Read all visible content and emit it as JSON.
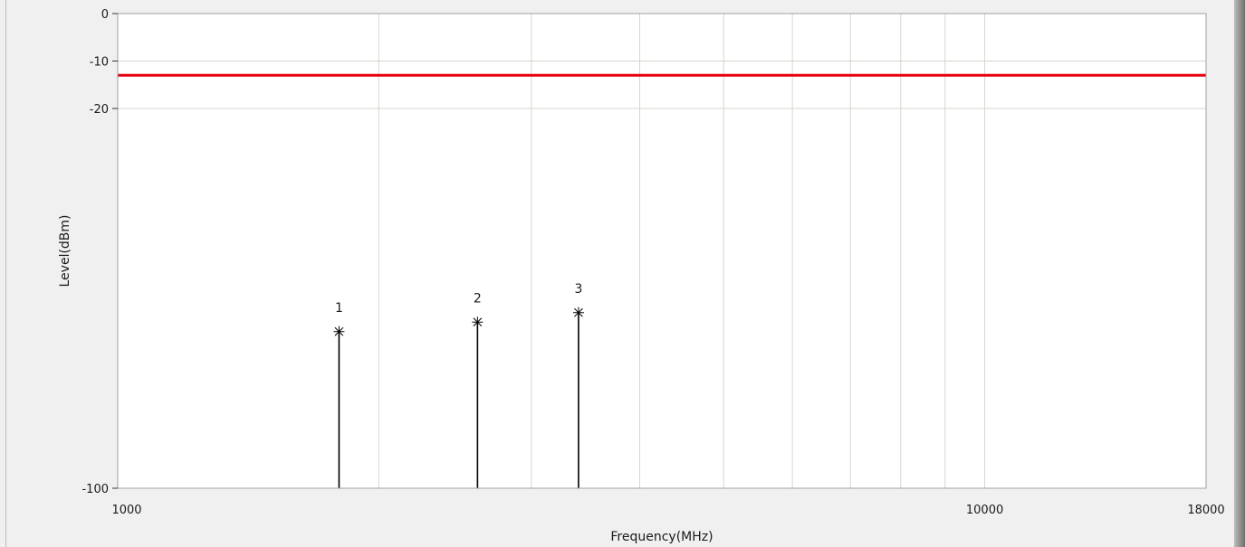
{
  "chart_data": {
    "type": "scatter",
    "title": "",
    "xlabel": "Frequency(MHz)",
    "ylabel": "Level(dBm)",
    "xscale": "log",
    "xlim": [
      1000,
      18000
    ],
    "ylim": [
      -100,
      0
    ],
    "x_tick_labels": [
      {
        "value": 1000,
        "label": "1000"
      },
      {
        "value": 10000,
        "label": "10000"
      },
      {
        "value": 18000,
        "label": "18000"
      }
    ],
    "y_tick_labels": [
      {
        "value": 0,
        "label": "0"
      },
      {
        "value": -10,
        "label": "-10"
      },
      {
        "value": -20,
        "label": "-20"
      },
      {
        "value": -100,
        "label": "-100"
      }
    ],
    "x_gridlines": [
      2000,
      3000,
      4000,
      5000,
      6000,
      7000,
      8000,
      9000,
      10000
    ],
    "y_gridlines": [
      -10,
      -20
    ],
    "grid": true,
    "limit_line": {
      "value": -13,
      "color": "#e8000f"
    },
    "markers": [
      {
        "label": "1",
        "x": 1800,
        "y": -67
      },
      {
        "label": "2",
        "x": 2600,
        "y": -65
      },
      {
        "label": "3",
        "x": 3400,
        "y": -63
      }
    ],
    "colors": {
      "plot_bg": "#ffffff",
      "grid": "#d9d6cc",
      "stem": "#000000",
      "frame_bg": "#f0f0f0"
    }
  }
}
